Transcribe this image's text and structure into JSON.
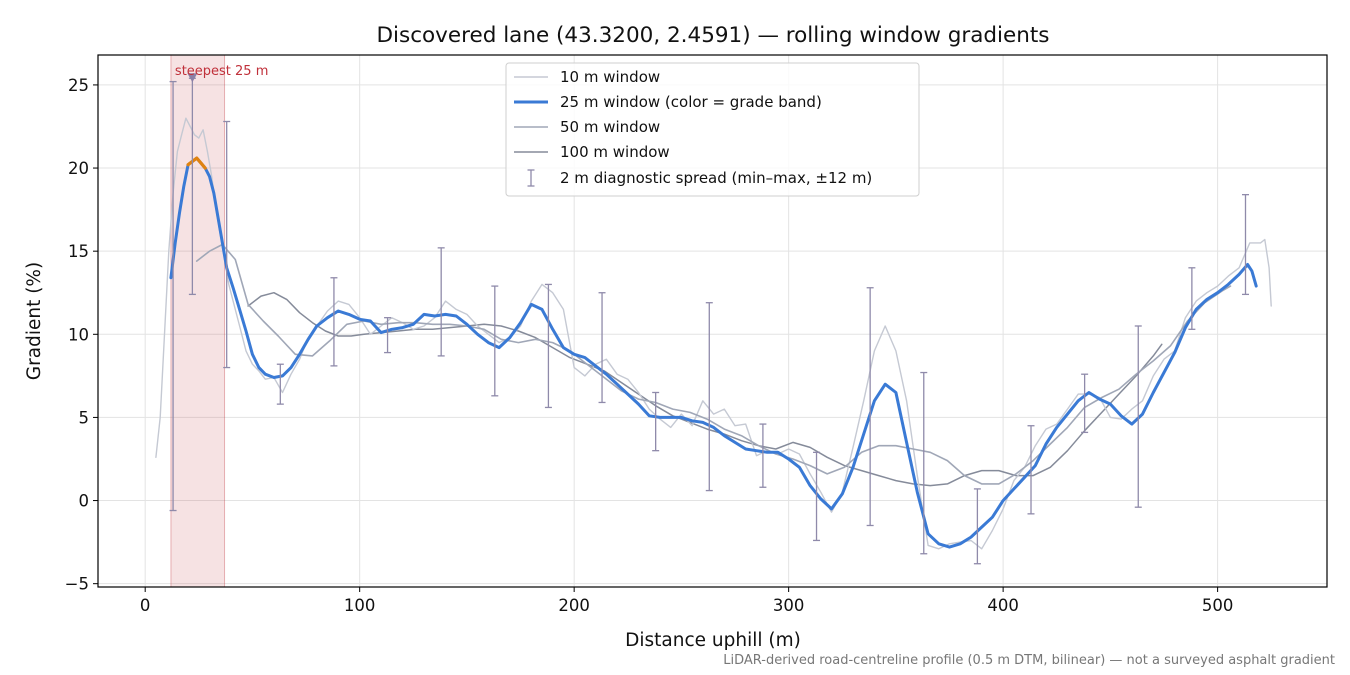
{
  "chart_data": {
    "type": "line",
    "title": "Discovered lane (43.3200, 2.4591) — rolling window gradients",
    "xlabel": "Distance uphill (m)",
    "ylabel": "Gradient (%)",
    "footnote": "LiDAR-derived road-centreline profile (0.5 m DTM, bilinear) — not a surveyed asphalt gradient",
    "xlim": [
      -22,
      551
    ],
    "ylim": [
      -5.2,
      26.8
    ],
    "x_ticks": [
      0,
      100,
      200,
      300,
      400,
      500
    ],
    "y_ticks": [
      -5,
      0,
      5,
      10,
      15,
      20,
      25
    ],
    "x_tick_labels": [
      "0",
      "100",
      "200",
      "300",
      "400",
      "500"
    ],
    "y_tick_labels": [
      "−5",
      "0",
      "5",
      "10",
      "15",
      "20",
      "25"
    ],
    "grid": true,
    "legend_position": "top-center",
    "annotation": {
      "text": "steepest 25 m",
      "band": [
        12,
        37
      ],
      "marker": {
        "x": 22,
        "y": 25.4
      },
      "color": "#c0303a"
    },
    "series": [
      {
        "name": "10 m window",
        "color": "#c5c9d3",
        "x": [
          5,
          7,
          9,
          11,
          13,
          15,
          17,
          19,
          21,
          23,
          25,
          27,
          29,
          31,
          33,
          35,
          37,
          39,
          41,
          44,
          47,
          50,
          53,
          56,
          60,
          64,
          68,
          72,
          76,
          80,
          85,
          90,
          95,
          100,
          105,
          110,
          115,
          120,
          125,
          130,
          135,
          140,
          145,
          150,
          155,
          160,
          165,
          170,
          175,
          180,
          185,
          190,
          195,
          200,
          205,
          210,
          215,
          220,
          225,
          230,
          235,
          240,
          245,
          250,
          255,
          260,
          265,
          270,
          275,
          280,
          285,
          290,
          295,
          300,
          305,
          310,
          315,
          320,
          325,
          330,
          335,
          340,
          345,
          350,
          355,
          360,
          365,
          370,
          375,
          380,
          385,
          390,
          395,
          400,
          405,
          410,
          415,
          420,
          425,
          430,
          435,
          440,
          445,
          450,
          455,
          460,
          465,
          470,
          475,
          480,
          485,
          490,
          495,
          500,
          505,
          510,
          515,
          520,
          522,
          524,
          525
        ],
        "y": [
          2.6,
          5,
          10,
          15,
          18.5,
          21,
          22,
          23,
          22.5,
          22,
          21.8,
          22.3,
          21,
          19.5,
          17.5,
          16,
          14.5,
          13,
          12,
          10.5,
          9,
          8.2,
          7.8,
          7.3,
          7.4,
          6.5,
          7.6,
          8.5,
          9.8,
          10.5,
          11.4,
          12,
          11.8,
          11,
          10,
          10.5,
          11,
          10.7,
          10.3,
          10.5,
          11,
          12,
          11.5,
          11.2,
          10.5,
          10,
          9.5,
          9.8,
          10.5,
          12,
          13,
          12.5,
          11.5,
          8,
          7.5,
          8.2,
          8.5,
          7.6,
          7.3,
          6.5,
          5.5,
          4.9,
          4.4,
          5.2,
          4.5,
          6,
          5.2,
          5.5,
          4.5,
          4.6,
          2.7,
          3,
          2.8,
          3.1,
          2.8,
          1.6,
          0.5,
          -0.7,
          0.5,
          3.2,
          6,
          9,
          10.5,
          9,
          6,
          1.5,
          -2.7,
          -2.9,
          -2.6,
          -2.5,
          -2.4,
          -2.9,
          -1.8,
          -0.5,
          1.2,
          2,
          3.3,
          4.3,
          4.6,
          5.5,
          6.4,
          6.4,
          6.2,
          5,
          4.9,
          5.5,
          6,
          7.5,
          8.5,
          9,
          11,
          12,
          12.5,
          12.9,
          13.5,
          14,
          15.5,
          15.5,
          15.7,
          14,
          11.7
        ]
      },
      {
        "name": "25 m window (color = grade band)",
        "color": "#3a7ad5",
        "high_color": "#e0820f",
        "high_threshold": 20,
        "x": [
          12,
          14,
          16,
          18,
          20,
          22,
          24,
          26,
          28,
          30,
          32,
          34,
          36,
          38,
          41,
          44,
          47,
          50,
          53,
          56,
          60,
          64,
          68,
          72,
          76,
          80,
          85,
          90,
          95,
          100,
          105,
          110,
          115,
          120,
          125,
          130,
          135,
          140,
          145,
          150,
          155,
          160,
          165,
          170,
          175,
          180,
          185,
          190,
          195,
          200,
          205,
          210,
          215,
          220,
          225,
          230,
          235,
          240,
          245,
          250,
          255,
          260,
          265,
          270,
          275,
          280,
          285,
          290,
          295,
          300,
          305,
          310,
          315,
          320,
          325,
          330,
          335,
          340,
          345,
          350,
          355,
          360,
          365,
          370,
          375,
          380,
          385,
          390,
          395,
          400,
          405,
          410,
          415,
          420,
          425,
          430,
          435,
          440,
          445,
          450,
          455,
          460,
          465,
          470,
          475,
          480,
          485,
          490,
          495,
          500,
          505,
          510,
          514,
          516,
          518
        ],
        "y": [
          13.4,
          15.5,
          17.3,
          18.9,
          20.2,
          20.4,
          20.6,
          20.3,
          20,
          19.5,
          18.5,
          17,
          15.5,
          14,
          12.8,
          11.5,
          10.2,
          8.8,
          8,
          7.6,
          7.4,
          7.5,
          8,
          8.8,
          9.7,
          10.5,
          11,
          11.4,
          11.2,
          10.9,
          10.8,
          10.1,
          10.3,
          10.4,
          10.6,
          11.2,
          11.1,
          11.2,
          11.1,
          10.6,
          10,
          9.5,
          9.2,
          9.8,
          10.7,
          11.8,
          11.5,
          10.3,
          9.2,
          8.8,
          8.6,
          8.1,
          7.6,
          7,
          6.4,
          5.8,
          5.1,
          5,
          5,
          5,
          4.8,
          4.7,
          4.4,
          3.9,
          3.5,
          3.1,
          3,
          2.9,
          2.9,
          2.5,
          2,
          0.9,
          0.1,
          -0.5,
          0.4,
          2,
          4,
          6,
          7,
          6.5,
          3.5,
          0.5,
          -2,
          -2.6,
          -2.8,
          -2.6,
          -2.2,
          -1.6,
          -1,
          0,
          0.7,
          1.4,
          2.1,
          3.4,
          4.4,
          5.2,
          6,
          6.5,
          6.1,
          5.8,
          5.1,
          4.6,
          5.2,
          6.5,
          7.7,
          8.9,
          10.4,
          11.5,
          12.1,
          12.5,
          13,
          13.6,
          14.2,
          13.8,
          12.9
        ]
      },
      {
        "name": "50 m window",
        "color": "#a0a7b7",
        "x": [
          24,
          30,
          36,
          42,
          48,
          55,
          62,
          70,
          78,
          86,
          94,
          102,
          110,
          118,
          126,
          134,
          142,
          150,
          158,
          166,
          174,
          182,
          190,
          198,
          206,
          214,
          222,
          230,
          238,
          246,
          254,
          262,
          270,
          278,
          286,
          294,
          302,
          310,
          318,
          326,
          334,
          342,
          350,
          358,
          366,
          374,
          382,
          390,
          398,
          406,
          414,
          422,
          430,
          438,
          446,
          454,
          462,
          470,
          478,
          486,
          494,
          502,
          506
        ],
        "y": [
          14.4,
          15,
          15.4,
          14.5,
          11.8,
          10.8,
          9.9,
          8.8,
          8.7,
          9.6,
          10.6,
          10.8,
          10.6,
          10.7,
          10.7,
          10.6,
          10.6,
          10.5,
          10.3,
          9.7,
          9.5,
          9.7,
          9.5,
          9,
          8.2,
          7.4,
          6.6,
          6.1,
          5.9,
          5.5,
          5.3,
          4.9,
          4.3,
          3.9,
          3.3,
          2.8,
          2.5,
          2.1,
          1.6,
          2,
          2.9,
          3.3,
          3.3,
          3.1,
          2.9,
          2.4,
          1.5,
          1,
          1,
          1.6,
          2.4,
          3.4,
          4.4,
          5.6,
          6.2,
          6.7,
          7.6,
          8.4,
          9.3,
          10.8,
          11.9,
          12.6,
          12.9
        ]
      },
      {
        "name": "100 m window",
        "color": "#858b9a",
        "x": [
          48,
          54,
          60,
          66,
          72,
          78,
          84,
          90,
          96,
          102,
          110,
          118,
          126,
          134,
          142,
          150,
          158,
          166,
          174,
          182,
          190,
          198,
          206,
          214,
          222,
          230,
          238,
          246,
          254,
          262,
          270,
          278,
          286,
          294,
          302,
          310,
          318,
          326,
          334,
          342,
          350,
          358,
          366,
          374,
          382,
          390,
          398,
          406,
          414,
          422,
          430,
          438,
          446,
          454,
          462,
          470,
          474
        ],
        "y": [
          11.7,
          12.3,
          12.5,
          12.1,
          11.3,
          10.7,
          10.2,
          9.9,
          9.9,
          10,
          10.1,
          10.2,
          10.3,
          10.3,
          10.4,
          10.5,
          10.6,
          10.5,
          10.2,
          9.8,
          9.2,
          8.6,
          8.2,
          7.8,
          7.1,
          6.4,
          5.7,
          5.1,
          4.7,
          4.3,
          4,
          3.6,
          3.3,
          3.1,
          3.5,
          3.2,
          2.6,
          2.1,
          1.8,
          1.5,
          1.2,
          1,
          0.9,
          1,
          1.5,
          1.8,
          1.8,
          1.5,
          1.5,
          2,
          3,
          4.2,
          5.3,
          6.4,
          7.5,
          8.7,
          9.4
        ]
      }
    ],
    "errorbars": {
      "name": "2 m diagnostic spread (min–max, ±12 m)",
      "color": "#8f8aaa",
      "x": [
        13,
        22,
        38,
        63,
        88,
        113,
        138,
        163,
        188,
        213,
        238,
        263,
        288,
        313,
        338,
        363,
        388,
        413,
        438,
        463,
        488,
        513
      ],
      "low": [
        -0.6,
        12.4,
        8,
        5.8,
        8.1,
        8.9,
        8.7,
        6.3,
        5.6,
        5.9,
        3,
        0.6,
        0.8,
        -2.4,
        -1.5,
        -3.2,
        -3.8,
        -0.8,
        4.1,
        -0.4,
        10.3,
        12.4
      ],
      "high": [
        25.2,
        25.4,
        22.8,
        8.2,
        13.4,
        11,
        15.2,
        12.9,
        13,
        12.5,
        6.5,
        11.9,
        4.6,
        2.9,
        12.8,
        7.7,
        0.7,
        4.5,
        7.6,
        10.5,
        14,
        18.4
      ]
    }
  }
}
